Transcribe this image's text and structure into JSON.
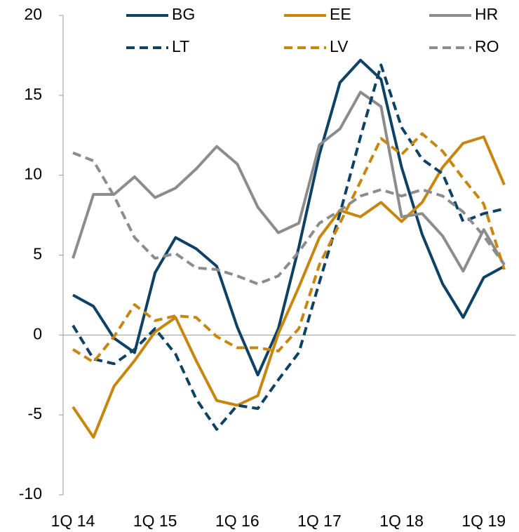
{
  "chart_data": {
    "type": "line",
    "categories": [
      "1Q 14",
      null,
      null,
      null,
      "1Q 15",
      null,
      null,
      null,
      "1Q 16",
      null,
      null,
      null,
      "1Q 17",
      null,
      null,
      null,
      "1Q 18",
      null,
      null,
      null,
      "1Q 19",
      null
    ],
    "series": [
      {
        "name": "BG",
        "color": "#0e4166",
        "dash": false,
        "values": [
          2.5,
          1.8,
          -0.2,
          -1.1,
          3.9,
          6.1,
          5.4,
          4.3,
          0.5,
          -2.5,
          0.4,
          5.5,
          11.3,
          15.8,
          17.2,
          16.0,
          10.5,
          6.3,
          3.2,
          1.1,
          3.6,
          4.3
        ]
      },
      {
        "name": "EE",
        "color": "#c8860f",
        "dash": false,
        "values": [
          -4.5,
          -6.4,
          -3.2,
          -1.6,
          0.2,
          1.1,
          -1.6,
          -4.1,
          -4.4,
          -3.8,
          0.1,
          3.0,
          6.1,
          7.8,
          7.4,
          8.3,
          7.1,
          8.3,
          10.5,
          12.0,
          12.4,
          9.4
        ]
      },
      {
        "name": "HR",
        "color": "#8c8c8c",
        "dash": false,
        "values": [
          4.8,
          8.8,
          8.8,
          9.9,
          8.6,
          9.2,
          10.4,
          11.8,
          10.7,
          8.0,
          6.4,
          7.0,
          11.9,
          12.9,
          15.2,
          14.3,
          7.4,
          7.6,
          6.2,
          4.0,
          6.6,
          4.4
        ]
      },
      {
        "name": "LT",
        "color": "#0e4166",
        "dash": true,
        "values": [
          0.6,
          -1.5,
          -1.8,
          -0.9,
          0.4,
          -1.2,
          -4.0,
          -5.9,
          -4.4,
          -4.6,
          -2.8,
          -1.1,
          3.3,
          7.6,
          12.4,
          16.9,
          13.0,
          11.0,
          10.1,
          7.1,
          7.6,
          7.9
        ]
      },
      {
        "name": "LV",
        "color": "#c8860f",
        "dash": true,
        "values": [
          -0.9,
          -1.7,
          -0.1,
          1.9,
          0.9,
          1.2,
          1.1,
          -0.1,
          -0.8,
          -0.8,
          -1.0,
          0.4,
          4.4,
          7.0,
          9.6,
          12.3,
          11.3,
          12.6,
          11.5,
          9.8,
          8.2,
          4.1
        ]
      },
      {
        "name": "RO",
        "color": "#8c8c8c",
        "dash": true,
        "values": [
          11.4,
          10.9,
          8.7,
          6.1,
          4.8,
          5.1,
          4.2,
          4.1,
          3.7,
          3.2,
          3.7,
          5.2,
          7.0,
          7.8,
          8.7,
          9.1,
          8.7,
          9.1,
          8.7,
          7.7,
          6.2,
          4.4
        ]
      }
    ],
    "ylim": [
      -10,
      20
    ],
    "yticks": [
      -10,
      -5,
      0,
      5,
      10,
      15,
      20
    ],
    "grid": false,
    "legend": "top"
  }
}
